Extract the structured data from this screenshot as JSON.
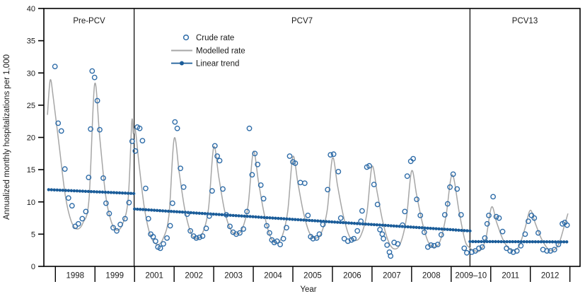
{
  "chart_data": {
    "type": "line+scatter",
    "title": "",
    "xlabel": "Year",
    "ylabel": "Annualized monthly hospitalizations per 1,000",
    "ylim": [
      0,
      40
    ],
    "yticks": [
      0,
      5,
      10,
      15,
      20,
      25,
      30,
      35,
      40
    ],
    "x_bin_labels": [
      "1998",
      "1999",
      "2001",
      "2002",
      "2003",
      "2004",
      "2005",
      "2006",
      "2007",
      "2008",
      "2009–10",
      "2011",
      "2012"
    ],
    "grid": false,
    "legend_position": "inside-top-left",
    "periods": [
      {
        "label": "Pre-PCV",
        "start_year": 1997.7,
        "end_year": 2000.0
      },
      {
        "label": "PCV7",
        "start_year": 2001.0,
        "end_year": 2009.95
      },
      {
        "label": "PCV13",
        "start_year": 2009.95,
        "end_year": 2013.0
      }
    ],
    "colors": {
      "crude": "#2e6ca8",
      "modelled": "#a6a6a6",
      "trend": "#1a5c99",
      "text": "#1a1a1a",
      "axis": "#000000"
    },
    "series": [
      {
        "name": "Crude rate",
        "type": "scatter",
        "points": [
          [
            1997.99,
            31.0
          ],
          [
            1998.07,
            22.2
          ],
          [
            1998.15,
            21.0
          ],
          [
            1998.24,
            15.1
          ],
          [
            1998.33,
            10.6
          ],
          [
            1998.42,
            9.4
          ],
          [
            1998.5,
            6.2
          ],
          [
            1998.58,
            6.6
          ],
          [
            1998.68,
            7.4
          ],
          [
            1998.77,
            8.5
          ],
          [
            1998.84,
            13.8
          ],
          [
            1998.89,
            21.3
          ],
          [
            1998.93,
            30.3
          ],
          [
            1998.99,
            29.3
          ],
          [
            1999.06,
            25.7
          ],
          [
            1999.12,
            21.2
          ],
          [
            1999.21,
            13.7
          ],
          [
            1999.28,
            9.8
          ],
          [
            1999.36,
            8.2
          ],
          [
            1999.46,
            6.0
          ],
          [
            1999.55,
            5.5
          ],
          [
            1999.64,
            6.5
          ],
          [
            1999.76,
            7.4
          ],
          [
            1999.86,
            9.9
          ],
          [
            1999.94,
            19.4
          ],
          [
            2001.02,
            17.9
          ],
          [
            2001.07,
            21.6
          ],
          [
            2001.13,
            21.4
          ],
          [
            2001.2,
            19.5
          ],
          [
            2001.28,
            12.1
          ],
          [
            2001.35,
            7.4
          ],
          [
            2001.41,
            5.0
          ],
          [
            2001.47,
            4.6
          ],
          [
            2001.53,
            3.9
          ],
          [
            2001.59,
            3.0
          ],
          [
            2001.65,
            2.8
          ],
          [
            2001.73,
            3.5
          ],
          [
            2001.82,
            4.4
          ],
          [
            2001.9,
            6.3
          ],
          [
            2001.96,
            9.8
          ],
          [
            2002.02,
            22.4
          ],
          [
            2002.08,
            21.4
          ],
          [
            2002.16,
            15.2
          ],
          [
            2002.24,
            12.3
          ],
          [
            2002.33,
            8.1
          ],
          [
            2002.41,
            5.5
          ],
          [
            2002.49,
            4.7
          ],
          [
            2002.56,
            4.4
          ],
          [
            2002.64,
            4.5
          ],
          [
            2002.72,
            4.7
          ],
          [
            2002.81,
            5.9
          ],
          [
            2002.89,
            7.8
          ],
          [
            2002.96,
            11.7
          ],
          [
            2003.03,
            18.7
          ],
          [
            2003.09,
            17.1
          ],
          [
            2003.15,
            16.4
          ],
          [
            2003.23,
            12.0
          ],
          [
            2003.32,
            8.0
          ],
          [
            2003.41,
            6.2
          ],
          [
            2003.49,
            5.3
          ],
          [
            2003.57,
            5.0
          ],
          [
            2003.66,
            5.2
          ],
          [
            2003.75,
            5.8
          ],
          [
            2003.84,
            8.5
          ],
          [
            2003.9,
            21.4
          ],
          [
            2003.97,
            14.2
          ],
          [
            2004.04,
            17.5
          ],
          [
            2004.11,
            15.8
          ],
          [
            2004.19,
            12.6
          ],
          [
            2004.26,
            10.5
          ],
          [
            2004.34,
            6.3
          ],
          [
            2004.41,
            5.2
          ],
          [
            2004.47,
            4.1
          ],
          [
            2004.53,
            3.7
          ],
          [
            2004.6,
            3.9
          ],
          [
            2004.68,
            3.4
          ],
          [
            2004.76,
            4.3
          ],
          [
            2004.84,
            6.0
          ],
          [
            2004.92,
            17.1
          ],
          [
            2005.0,
            16.2
          ],
          [
            2005.06,
            16.0
          ],
          [
            2005.19,
            13.0
          ],
          [
            2005.3,
            12.9
          ],
          [
            2005.38,
            7.9
          ],
          [
            2005.45,
            4.6
          ],
          [
            2005.51,
            4.3
          ],
          [
            2005.6,
            4.4
          ],
          [
            2005.67,
            5.0
          ],
          [
            2005.76,
            6.5
          ],
          [
            2005.88,
            11.9
          ],
          [
            2005.95,
            17.3
          ],
          [
            2006.03,
            17.4
          ],
          [
            2006.15,
            14.7
          ],
          [
            2006.21,
            7.5
          ],
          [
            2006.3,
            4.3
          ],
          [
            2006.39,
            3.9
          ],
          [
            2006.48,
            4.1
          ],
          [
            2006.54,
            4.3
          ],
          [
            2006.63,
            5.5
          ],
          [
            2006.72,
            7.0
          ],
          [
            2006.75,
            8.6
          ],
          [
            2006.87,
            15.4
          ],
          [
            2006.93,
            15.6
          ],
          [
            2007.05,
            12.7
          ],
          [
            2007.14,
            9.6
          ],
          [
            2007.2,
            5.7
          ],
          [
            2007.26,
            5.0
          ],
          [
            2007.29,
            4.3
          ],
          [
            2007.38,
            3.3
          ],
          [
            2007.44,
            2.2
          ],
          [
            2007.47,
            1.6
          ],
          [
            2007.56,
            3.7
          ],
          [
            2007.65,
            3.5
          ],
          [
            2007.77,
            6.4
          ],
          [
            2007.83,
            8.5
          ],
          [
            2007.89,
            14.0
          ],
          [
            2007.98,
            16.3
          ],
          [
            2008.04,
            16.7
          ],
          [
            2008.13,
            10.4
          ],
          [
            2008.22,
            7.9
          ],
          [
            2008.32,
            5.3
          ],
          [
            2008.41,
            3.0
          ],
          [
            2008.49,
            3.3
          ],
          [
            2008.57,
            3.2
          ],
          [
            2008.66,
            3.4
          ],
          [
            2008.75,
            4.9
          ],
          [
            2008.84,
            8.0
          ],
          [
            2008.91,
            9.7
          ],
          [
            2008.97,
            12.3
          ],
          [
            2009.1,
            14.3
          ],
          [
            2009.3,
            12.0
          ],
          [
            2009.5,
            8.0
          ],
          [
            2009.66,
            2.8
          ],
          [
            2009.79,
            2.1
          ],
          [
            2010.04,
            2.2
          ],
          [
            2010.22,
            2.4
          ],
          [
            2010.4,
            2.8
          ],
          [
            2010.57,
            3.0
          ],
          [
            2010.7,
            4.4
          ],
          [
            2010.82,
            6.6
          ],
          [
            2010.9,
            7.9
          ],
          [
            2011.06,
            10.8
          ],
          [
            2011.14,
            7.7
          ],
          [
            2011.21,
            7.5
          ],
          [
            2011.3,
            5.4
          ],
          [
            2011.4,
            2.8
          ],
          [
            2011.49,
            2.4
          ],
          [
            2011.57,
            2.2
          ],
          [
            2011.66,
            2.4
          ],
          [
            2011.76,
            3.2
          ],
          [
            2011.87,
            5.0
          ],
          [
            2011.95,
            7.0
          ],
          [
            2012.03,
            7.9
          ],
          [
            2012.1,
            7.5
          ],
          [
            2012.2,
            5.2
          ],
          [
            2012.32,
            2.6
          ],
          [
            2012.42,
            2.4
          ],
          [
            2012.51,
            2.4
          ],
          [
            2012.61,
            2.6
          ],
          [
            2012.71,
            3.4
          ],
          [
            2012.81,
            6.6
          ],
          [
            2012.87,
            6.8
          ],
          [
            2012.93,
            6.4
          ]
        ]
      },
      {
        "name": "Modelled rate",
        "type": "line",
        "points": [
          [
            1997.8,
            23.5
          ],
          [
            1997.87,
            28.9
          ],
          [
            1997.95,
            26.0
          ],
          [
            1998.1,
            18.5
          ],
          [
            1998.25,
            11.0
          ],
          [
            1998.4,
            7.0
          ],
          [
            1998.55,
            5.8
          ],
          [
            1998.7,
            6.8
          ],
          [
            1998.85,
            10.5
          ],
          [
            1998.99,
            28.2
          ],
          [
            1999.12,
            20.0
          ],
          [
            1999.27,
            11.0
          ],
          [
            1999.42,
            6.8
          ],
          [
            1999.56,
            5.6
          ],
          [
            1999.7,
            6.6
          ],
          [
            1999.84,
            10.5
          ],
          [
            1999.93,
            22.4
          ],
          [
            1999.97,
            20.6
          ],
          [
            2001.02,
            21.2
          ],
          [
            2001.12,
            15.5
          ],
          [
            2001.25,
            9.0
          ],
          [
            2001.4,
            4.8
          ],
          [
            2001.57,
            3.4
          ],
          [
            2001.72,
            4.3
          ],
          [
            2001.87,
            8.0
          ],
          [
            2002.0,
            19.8
          ],
          [
            2002.13,
            14.5
          ],
          [
            2002.27,
            8.8
          ],
          [
            2002.42,
            5.3
          ],
          [
            2002.57,
            4.3
          ],
          [
            2002.72,
            5.2
          ],
          [
            2002.87,
            9.0
          ],
          [
            2003.0,
            18.5
          ],
          [
            2003.13,
            13.8
          ],
          [
            2003.27,
            8.8
          ],
          [
            2003.42,
            5.8
          ],
          [
            2003.57,
            5.0
          ],
          [
            2003.72,
            5.8
          ],
          [
            2003.87,
            9.5
          ],
          [
            2004.0,
            17.8
          ],
          [
            2004.13,
            13.2
          ],
          [
            2004.27,
            8.3
          ],
          [
            2004.42,
            4.8
          ],
          [
            2004.57,
            3.6
          ],
          [
            2004.72,
            4.5
          ],
          [
            2004.87,
            8.5
          ],
          [
            2005.0,
            17.0
          ],
          [
            2005.13,
            12.8
          ],
          [
            2005.27,
            8.3
          ],
          [
            2005.42,
            5.2
          ],
          [
            2005.57,
            4.4
          ],
          [
            2005.72,
            5.2
          ],
          [
            2005.87,
            8.8
          ],
          [
            2006.0,
            16.8
          ],
          [
            2006.13,
            12.5
          ],
          [
            2006.27,
            8.0
          ],
          [
            2006.42,
            4.8
          ],
          [
            2006.57,
            4.0
          ],
          [
            2006.72,
            4.8
          ],
          [
            2006.87,
            8.2
          ],
          [
            2007.0,
            15.5
          ],
          [
            2007.13,
            11.5
          ],
          [
            2007.27,
            7.0
          ],
          [
            2007.42,
            3.8
          ],
          [
            2007.57,
            2.7
          ],
          [
            2007.72,
            3.6
          ],
          [
            2007.87,
            7.5
          ],
          [
            2008.0,
            14.8
          ],
          [
            2008.13,
            11.0
          ],
          [
            2008.27,
            6.8
          ],
          [
            2008.42,
            3.8
          ],
          [
            2008.57,
            3.0
          ],
          [
            2008.72,
            3.9
          ],
          [
            2008.87,
            7.8
          ],
          [
            2009.05,
            14.2
          ],
          [
            2009.4,
            8.5
          ],
          [
            2009.7,
            4.0
          ],
          [
            2009.93,
            2.9
          ],
          [
            2010.15,
            2.5
          ],
          [
            2010.45,
            2.4
          ],
          [
            2010.75,
            4.3
          ],
          [
            2011.02,
            9.2
          ],
          [
            2011.15,
            6.8
          ],
          [
            2011.3,
            4.3
          ],
          [
            2011.45,
            2.8
          ],
          [
            2011.58,
            2.5
          ],
          [
            2011.72,
            3.2
          ],
          [
            2011.87,
            6.0
          ],
          [
            2012.0,
            8.7
          ],
          [
            2012.13,
            6.6
          ],
          [
            2012.28,
            4.3
          ],
          [
            2012.45,
            2.7
          ],
          [
            2012.58,
            2.5
          ],
          [
            2012.72,
            3.5
          ],
          [
            2012.86,
            6.3
          ],
          [
            2012.95,
            8.2
          ]
        ]
      },
      {
        "name": "Linear trend",
        "type": "segments",
        "segments": [
          [
            [
              1997.83,
              11.9
            ],
            [
              1999.98,
              11.3
            ]
          ],
          [
            [
              2001.0,
              8.9
            ],
            [
              2009.95,
              5.5
            ]
          ],
          [
            [
              2009.95,
              3.85
            ],
            [
              2012.92,
              3.8
            ]
          ]
        ]
      }
    ]
  }
}
